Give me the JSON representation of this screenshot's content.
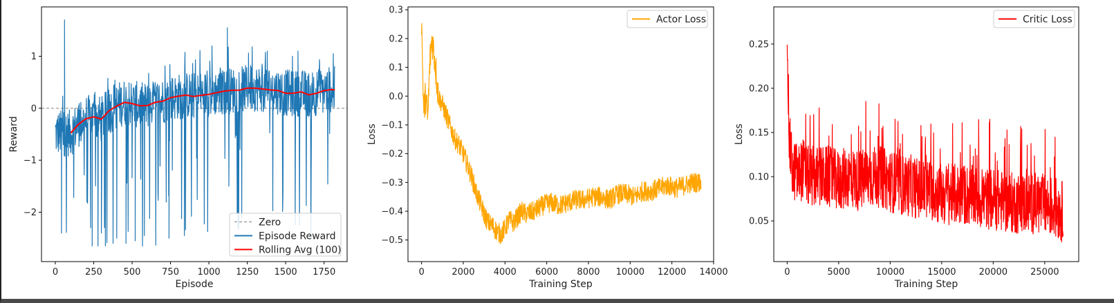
{
  "chart_data": [
    {
      "type": "line",
      "xlabel": "Episode",
      "ylabel": "Reward",
      "xlim": [
        -90,
        1900
      ],
      "ylim": [
        -2.95,
        1.95
      ],
      "xticks": [
        0,
        250,
        500,
        750,
        1000,
        1250,
        1500,
        1750
      ],
      "yticks": [
        -2,
        -1,
        0,
        1
      ],
      "ytick_labels": [
        "−2",
        "−1",
        "0",
        "1"
      ],
      "legend_loc": "lower-right",
      "zero_line": {
        "name": "Zero",
        "y": 0,
        "color": "#808080",
        "style": "dashed"
      },
      "series": [
        {
          "name": "Episode Reward",
          "color": "#1f77b4",
          "x": [
            0,
            20,
            40,
            60,
            80,
            100,
            120,
            140,
            160,
            180,
            200,
            220,
            240,
            260,
            280,
            300,
            320,
            340,
            360,
            380,
            400,
            420,
            440,
            460,
            480,
            500,
            520,
            540,
            560,
            580,
            600,
            620,
            640,
            660,
            680,
            700,
            720,
            740,
            760,
            780,
            800,
            820,
            840,
            860,
            880,
            900,
            920,
            940,
            960,
            980,
            1000,
            1020,
            1040,
            1060,
            1080,
            1100,
            1120,
            1140,
            1160,
            1180,
            1200,
            1220,
            1240,
            1260,
            1280,
            1300,
            1320,
            1340,
            1360,
            1380,
            1400,
            1420,
            1440,
            1460,
            1480,
            1500,
            1520,
            1540,
            1560,
            1580,
            1600,
            1620,
            1640,
            1660,
            1680,
            1700,
            1720,
            1740,
            1760,
            1780,
            1800,
            1820
          ],
          "y": [
            -0.7,
            0.5,
            -2.4,
            1.7,
            -2.1,
            0.3,
            -0.9,
            -1.8,
            0.2,
            -2.2,
            0.5,
            -1.1,
            -2.65,
            0.4,
            -1.6,
            -2.4,
            0.6,
            -0.5,
            -1.9,
            0.7,
            -2.5,
            0.5,
            -0.8,
            -2.6,
            0.6,
            -1.2,
            -2.55,
            0.7,
            -0.4,
            -2.45,
            0.6,
            -1.3,
            -2.2,
            0.8,
            -0.6,
            -1.6,
            0.7,
            -2.5,
            0.5,
            -1.0,
            0.9,
            -0.8,
            -2.45,
            0.7,
            -0.5,
            -1.4,
            0.8,
            -0.3,
            -1.6,
            0.9,
            -0.6,
            1.2,
            -0.4,
            -1.1,
            0.8,
            -0.2,
            1.55,
            -0.5,
            -0.9,
            0.9,
            -0.2,
            -1.1,
            0.8,
            -0.4,
            1.0,
            -0.3,
            -0.8,
            0.9,
            -0.2,
            1.1,
            -0.5,
            -0.7,
            0.8,
            -0.3,
            1.0,
            -0.4,
            -0.6,
            0.9,
            -0.2,
            1.1,
            -0.5,
            -1.95,
            0.8,
            -1.6,
            -0.3,
            1.0,
            -0.6,
            0.7,
            -0.5,
            1.0,
            0.2,
            0.6
          ]
        },
        {
          "name": "Rolling Avg (100)",
          "color": "#ff0000",
          "x": [
            100,
            150,
            200,
            250,
            300,
            350,
            400,
            450,
            500,
            550,
            600,
            650,
            700,
            750,
            800,
            850,
            900,
            950,
            1000,
            1050,
            1100,
            1150,
            1200,
            1250,
            1300,
            1350,
            1400,
            1450,
            1500,
            1550,
            1600,
            1650,
            1700,
            1750,
            1800,
            1820
          ],
          "y": [
            -0.48,
            -0.3,
            -0.2,
            -0.18,
            -0.22,
            -0.05,
            0.05,
            0.12,
            0.1,
            0.05,
            0.05,
            0.1,
            0.15,
            0.2,
            0.22,
            0.25,
            0.24,
            0.26,
            0.28,
            0.3,
            0.32,
            0.34,
            0.36,
            0.38,
            0.39,
            0.37,
            0.36,
            0.33,
            0.3,
            0.28,
            0.3,
            0.27,
            0.3,
            0.33,
            0.37,
            0.36
          ]
        }
      ]
    },
    {
      "type": "line",
      "xlabel": "Training Step",
      "ylabel": "Loss",
      "xlim": [
        -650,
        14000
      ],
      "ylim": [
        -0.575,
        0.31
      ],
      "xticks": [
        0,
        2000,
        4000,
        6000,
        8000,
        10000,
        12000,
        14000
      ],
      "yticks": [
        -0.5,
        -0.4,
        -0.3,
        -0.2,
        -0.1,
        0.0,
        0.1,
        0.2,
        0.3
      ],
      "ytick_labels": [
        "−0.5",
        "−0.4",
        "−0.3",
        "−0.2",
        "−0.1",
        "0.0",
        "0.1",
        "0.2",
        "0.3"
      ],
      "legend_loc": "upper-right",
      "series": [
        {
          "name": "Actor Loss",
          "color": "#ffa500",
          "x": [
            0,
            100,
            200,
            300,
            400,
            500,
            600,
            700,
            800,
            1000,
            1200,
            1400,
            1600,
            1800,
            2000,
            2200,
            2400,
            2600,
            2800,
            3000,
            3200,
            3400,
            3600,
            3800,
            4000,
            4200,
            4400,
            4600,
            4800,
            5000,
            5400,
            5800,
            6200,
            6600,
            7000,
            7400,
            7800,
            8200,
            8600,
            9000,
            9400,
            9800,
            10200,
            10600,
            11000,
            11400,
            11800,
            12200,
            12600,
            13000,
            13400
          ],
          "y": [
            0.27,
            -0.05,
            0.0,
            -0.08,
            0.12,
            0.2,
            0.15,
            0.08,
            0.0,
            -0.03,
            -0.07,
            -0.11,
            -0.15,
            -0.17,
            -0.2,
            -0.24,
            -0.28,
            -0.33,
            -0.37,
            -0.41,
            -0.44,
            -0.45,
            -0.47,
            -0.48,
            -0.46,
            -0.43,
            -0.44,
            -0.42,
            -0.4,
            -0.41,
            -0.4,
            -0.38,
            -0.37,
            -0.38,
            -0.37,
            -0.36,
            -0.36,
            -0.35,
            -0.35,
            -0.36,
            -0.34,
            -0.34,
            -0.35,
            -0.33,
            -0.33,
            -0.32,
            -0.31,
            -0.32,
            -0.31,
            -0.3,
            -0.3
          ]
        }
      ]
    },
    {
      "type": "line",
      "xlabel": "Training Step",
      "ylabel": "Loss",
      "xlim": [
        -1300,
        28300
      ],
      "ylim": [
        0.004,
        0.292
      ],
      "xticks": [
        0,
        5000,
        10000,
        15000,
        20000,
        25000
      ],
      "yticks": [
        0.05,
        0.1,
        0.15,
        0.2,
        0.25
      ],
      "ytick_labels": [
        "0.05",
        "0.10",
        "0.15",
        "0.20",
        "0.25"
      ],
      "legend_loc": "upper-right",
      "series": [
        {
          "name": "Critic Loss",
          "color": "#ff0000",
          "x": [
            0,
            100,
            200,
            400,
            600,
            800,
            1000,
            1500,
            2000,
            2500,
            3000,
            4000,
            5000,
            6000,
            7000,
            8000,
            9000,
            10000,
            11000,
            12000,
            13000,
            14000,
            15000,
            16000,
            17000,
            18000,
            19000,
            20000,
            21000,
            22000,
            23000,
            24000,
            25000,
            26000,
            26800
          ],
          "y": [
            0.28,
            0.2,
            0.14,
            0.12,
            0.1,
            0.11,
            0.1,
            0.11,
            0.1,
            0.1,
            0.1,
            0.1,
            0.095,
            0.1,
            0.095,
            0.1,
            0.1,
            0.095,
            0.09,
            0.09,
            0.085,
            0.085,
            0.08,
            0.08,
            0.08,
            0.078,
            0.075,
            0.075,
            0.072,
            0.07,
            0.07,
            0.07,
            0.068,
            0.065,
            0.06
          ]
        }
      ]
    }
  ]
}
